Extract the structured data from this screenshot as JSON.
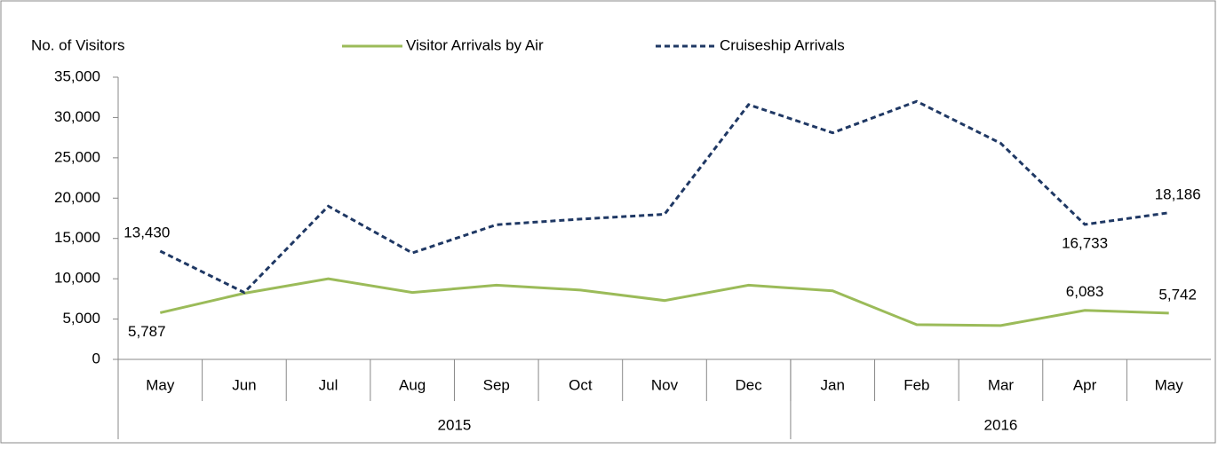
{
  "chart_data": {
    "type": "line",
    "y_label": "No. of  Visitors",
    "categories": [
      "May",
      "Jun",
      "Jul",
      "Aug",
      "Sep",
      "Oct",
      "Nov",
      "Dec",
      "Jan",
      "Feb",
      "Mar",
      "Apr",
      "May"
    ],
    "category_groups": [
      {
        "label": "2015",
        "count": 8
      },
      {
        "label": "2016",
        "count": 5
      }
    ],
    "series": [
      {
        "name": "Visitor Arrivals by Air",
        "color": "#9bbb59",
        "dash": false,
        "values": [
          5787,
          8200,
          10000,
          8300,
          9200,
          8600,
          7300,
          9200,
          8500,
          4300,
          4200,
          6083,
          5742
        ],
        "value_labels": [
          "5,787",
          null,
          null,
          null,
          null,
          null,
          null,
          null,
          null,
          null,
          null,
          "6,083",
          "5,742"
        ]
      },
      {
        "name": "Cruiseship Arrivals",
        "color": "#1f3864",
        "dash": true,
        "values": [
          13430,
          8300,
          19000,
          13200,
          16700,
          17400,
          18000,
          31600,
          28100,
          32000,
          26800,
          16733,
          18186
        ],
        "value_labels": [
          "13,430",
          null,
          null,
          null,
          null,
          null,
          null,
          null,
          null,
          null,
          null,
          "16,733",
          "18,186"
        ]
      }
    ],
    "ylim": [
      0,
      35000
    ],
    "yticks": [
      0,
      {
        "value": 5000,
        "label": "5,000"
      },
      {
        "value": 10000,
        "label": "10,000"
      },
      {
        "value": 15000,
        "label": "15,000"
      },
      {
        "value": 20000,
        "label": "20,000"
      },
      {
        "value": 25000,
        "label": "25,000"
      },
      {
        "value": 30000,
        "label": "30,000"
      },
      {
        "value": 35000,
        "label": "35,000"
      }
    ],
    "legend": "top"
  }
}
